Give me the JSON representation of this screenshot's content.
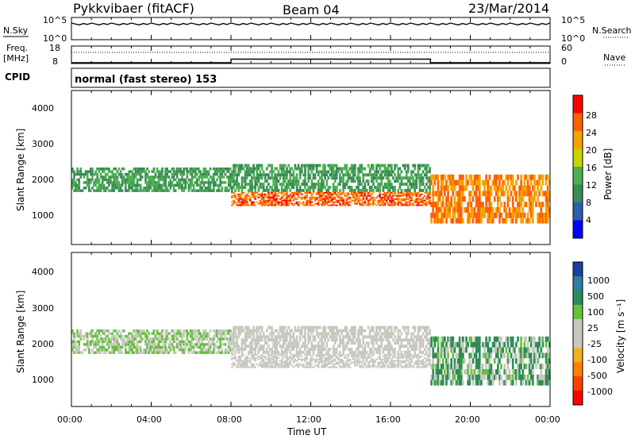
{
  "header": {
    "station": "Pykkvibaer (fitACF)",
    "beam": "Beam 04",
    "date": "23/Mar/2014"
  },
  "sky_panel": {
    "left_label": "N.Sky",
    "left_ticks": [
      "10^5",
      "10^0"
    ],
    "right_ticks": [
      "10^5",
      "10^0"
    ],
    "right_label": "N.Search"
  },
  "freq_panel": {
    "left_label_line1": "Freq.",
    "left_label_line2": "[MHz]",
    "left_ticks": [
      "18",
      "8"
    ],
    "right_ticks": [
      "60",
      "0"
    ],
    "right_label": "Nave"
  },
  "cpid": {
    "label": "CPID",
    "text": "normal (fast stereo) 153"
  },
  "power_panel": {
    "ylabel": "Slant Range [km]",
    "y_ticks": [
      "4000",
      "3000",
      "2000",
      "1000"
    ],
    "colorbar_label": "Power [dB]",
    "colorbar_ticks": [
      "28",
      "24",
      "20",
      "16",
      "12",
      "8",
      "4"
    ],
    "colors": [
      "#0000ff",
      "#2a5fb0",
      "#3a8a5a",
      "#4caf50",
      "#c8d400",
      "#f5a300",
      "#ff6000",
      "#ff0000"
    ]
  },
  "velocity_panel": {
    "ylabel": "Slant Range [km]",
    "y_ticks": [
      "4000",
      "3000",
      "2000",
      "1000"
    ],
    "colorbar_label": "Velocity [m s⁻¹]",
    "colorbar_ticks": [
      "1000",
      "500",
      "100",
      "25",
      "-25",
      "-100",
      "-500",
      "-1000"
    ],
    "colors": [
      "#1b3fa0",
      "#2a7fa0",
      "#2e8b57",
      "#66c040",
      "#c8c8c0",
      "#c8c8c0",
      "#f0b020",
      "#ff8000",
      "#ff4000",
      "#ff0000"
    ]
  },
  "time_axis": {
    "ticks": [
      "00:00",
      "04:00",
      "08:00",
      "12:00",
      "16:00",
      "20:00",
      "00:00"
    ],
    "label": "Time UT"
  },
  "chart_data": {
    "type": "heatmap",
    "title": "Pykkvibaer (fitACF)",
    "subtitle": "Beam 04",
    "date": "23/Mar/2014",
    "xlabel": "Time UT",
    "ylabel": "Slant Range [km]",
    "x_range": [
      "00:00",
      "24:00"
    ],
    "y_range_km": [
      200,
      4600
    ],
    "power_colorbar": {
      "label": "Power [dB]",
      "range": [
        0,
        32
      ],
      "ticks": [
        4,
        8,
        12,
        16,
        20,
        24,
        28
      ]
    },
    "velocity_colorbar": {
      "label": "Velocity [m s⁻¹]",
      "ticks": [
        1000,
        500,
        100,
        25,
        -25,
        -100,
        -500,
        -1000
      ]
    },
    "freq_mhz": [
      {
        "from": "00:00",
        "to": "08:00",
        "value": 8.5
      },
      {
        "from": "08:00",
        "to": "18:00",
        "value": 10.5
      },
      {
        "from": "18:00",
        "to": "24:00",
        "value": 8.5
      }
    ],
    "cpid": 153,
    "program": "normal (fast stereo)",
    "echo_bands": [
      {
        "from_hr": 0,
        "to_hr": 8,
        "range_km": [
          1700,
          2400
        ],
        "power_db": 12,
        "velocity": 25
      },
      {
        "from_hr": 8,
        "to_hr": 18,
        "range_km": [
          1300,
          1700
        ],
        "power_db": 26,
        "velocity": -25
      },
      {
        "from_hr": 8,
        "to_hr": 18,
        "range_km": [
          1700,
          2500
        ],
        "power_db": 12,
        "velocity": -25
      },
      {
        "from_hr": 18,
        "to_hr": 24,
        "range_km": [
          800,
          2200
        ],
        "power_db": 24,
        "velocity": 100
      }
    ]
  }
}
